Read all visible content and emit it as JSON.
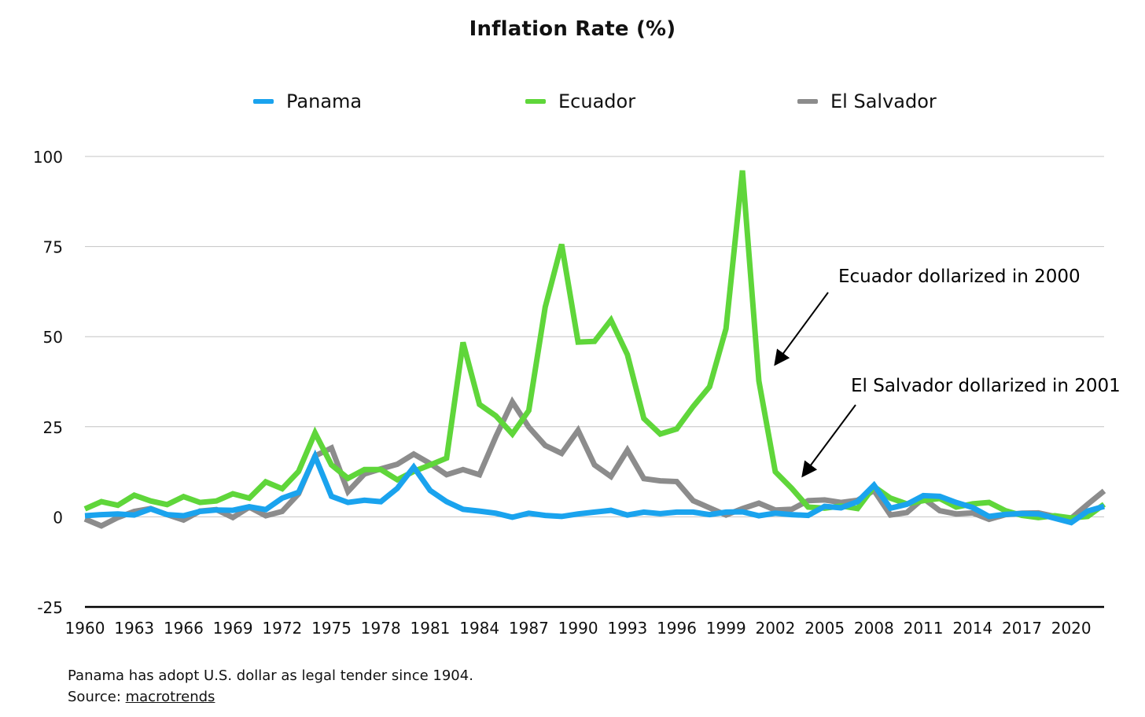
{
  "chart_data": {
    "type": "line",
    "title": "Inflation Rate (%)",
    "xlabel": "",
    "ylabel": "",
    "ylim": [
      -25,
      100
    ],
    "yticks": [
      -25,
      0,
      25,
      50,
      75,
      100
    ],
    "xticks": [
      1960,
      1963,
      1966,
      1969,
      1972,
      1975,
      1978,
      1981,
      1984,
      1987,
      1990,
      1993,
      1996,
      1999,
      2002,
      2005,
      2008,
      2011,
      2014,
      2017,
      2020
    ],
    "grid": true,
    "legend_position": "top",
    "x": [
      1960,
      1961,
      1962,
      1963,
      1964,
      1965,
      1966,
      1967,
      1968,
      1969,
      1970,
      1971,
      1972,
      1973,
      1974,
      1975,
      1976,
      1977,
      1978,
      1979,
      1980,
      1981,
      1982,
      1983,
      1984,
      1985,
      1986,
      1987,
      1988,
      1989,
      1990,
      1991,
      1992,
      1993,
      1994,
      1995,
      1996,
      1997,
      1998,
      1999,
      2000,
      2001,
      2002,
      2003,
      2004,
      2005,
      2006,
      2007,
      2008,
      2009,
      2010,
      2011,
      2012,
      2013,
      2014,
      2015,
      2016,
      2017,
      2018,
      2019,
      2020,
      2021,
      2022
    ],
    "series": [
      {
        "name": "Panama",
        "color": "#1aa3ee",
        "values": [
          0.3,
          0.6,
          0.8,
          0.5,
          2.2,
          0.6,
          0.3,
          1.5,
          1.9,
          1.8,
          2.8,
          2.0,
          5.2,
          6.8,
          16.8,
          5.7,
          4.0,
          4.6,
          4.2,
          7.9,
          13.8,
          7.3,
          4.2,
          2.1,
          1.6,
          1.0,
          -0.1,
          1.0,
          0.4,
          0.1,
          0.8,
          1.3,
          1.8,
          0.5,
          1.3,
          0.9,
          1.3,
          1.3,
          0.6,
          1.3,
          1.4,
          0.3,
          1.0,
          0.6,
          0.4,
          2.9,
          2.5,
          4.2,
          8.8,
          2.4,
          3.5,
          5.9,
          5.7,
          4.0,
          2.6,
          0.1,
          0.7,
          0.9,
          0.8,
          -0.4,
          -1.6,
          1.6,
          2.9
        ]
      },
      {
        "name": "Ecuador",
        "color": "#5fd63a",
        "values": [
          2.2,
          4.2,
          3.2,
          6.0,
          4.4,
          3.4,
          5.6,
          4.0,
          4.4,
          6.4,
          5.2,
          9.7,
          7.8,
          12.6,
          23.3,
          14.4,
          10.7,
          13.1,
          13.1,
          10.3,
          12.6,
          14.4,
          16.3,
          48.4,
          31.2,
          28.0,
          23.0,
          29.5,
          58.2,
          75.6,
          48.5,
          48.7,
          54.6,
          45.0,
          27.3,
          23.0,
          24.4,
          30.6,
          36.1,
          52.2,
          96.1,
          37.7,
          12.5,
          7.9,
          2.7,
          2.4,
          3.0,
          2.3,
          8.4,
          5.2,
          3.6,
          4.5,
          5.1,
          2.7,
          3.6,
          4.0,
          1.7,
          0.4,
          -0.2,
          0.3,
          -0.3,
          0.1,
          3.5
        ]
      },
      {
        "name": "El Salvador",
        "color": "#8c8c8c",
        "values": [
          -0.6,
          -2.5,
          -0.2,
          1.5,
          2.3,
          0.6,
          -0.9,
          1.6,
          2.0,
          -0.2,
          2.7,
          0.3,
          1.5,
          6.4,
          16.9,
          19.1,
          7.0,
          11.9,
          13.3,
          14.6,
          17.4,
          14.8,
          11.7,
          13.1,
          11.7,
          22.3,
          31.9,
          24.9,
          19.8,
          17.6,
          24.0,
          14.4,
          11.2,
          18.5,
          10.6,
          10.0,
          9.8,
          4.5,
          2.5,
          0.5,
          2.3,
          3.8,
          1.9,
          2.1,
          4.5,
          4.7,
          4.0,
          4.6,
          7.3,
          0.5,
          1.2,
          5.1,
          1.7,
          0.8,
          1.1,
          -0.7,
          0.6,
          1.0,
          1.1,
          0.1,
          -0.4,
          3.5,
          7.2
        ]
      }
    ],
    "annotations": [
      {
        "text": "Ecuador dollarized in 2000"
      },
      {
        "text": "El Salvador dollarized in 2001"
      }
    ]
  },
  "footnote": {
    "line1": "Panama has adopt U.S. dollar as legal tender since 1904.",
    "source_label": "Source: ",
    "source_link": "macrotrends"
  }
}
